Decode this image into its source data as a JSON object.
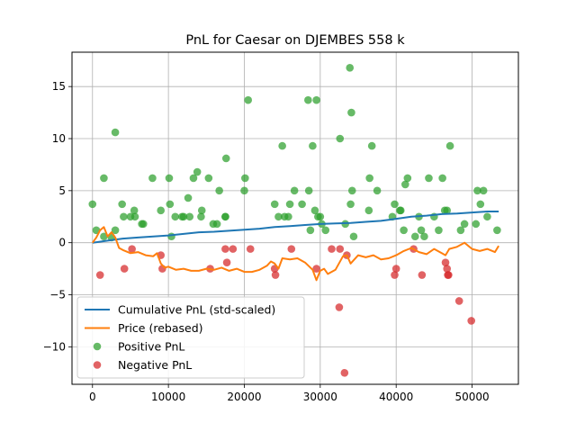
{
  "colors": {
    "cumulative": "#1f77b4",
    "price": "#ff7f0e",
    "positive": "#2ca02c",
    "negative": "#d62728",
    "grid": "#b0b0b0",
    "axis": "#000000"
  },
  "chart_data": {
    "type": "scatter",
    "title": "PnL for Caesar on DJEMBES 558 k",
    "xlabel": "",
    "ylabel": "",
    "xlim": [
      -2700,
      56100
    ],
    "ylim": [
      -13.6,
      18.3
    ],
    "grid": true,
    "legend_position": "lower-left",
    "x_ticks": [
      0,
      10000,
      20000,
      30000,
      40000,
      50000
    ],
    "x_tick_labels": [
      "0",
      "10000",
      "20000",
      "30000",
      "40000",
      "50000"
    ],
    "y_ticks": [
      -10,
      -5,
      0,
      5,
      10,
      15
    ],
    "y_tick_labels": [
      "−10",
      "−5",
      "0",
      "5",
      "10",
      "15"
    ],
    "legend": [
      {
        "label": "Cumulative PnL (std-scaled)",
        "kind": "line",
        "color": "#1f77b4"
      },
      {
        "label": "Price (rebased)",
        "kind": "line",
        "color": "#ff7f0e"
      },
      {
        "label": "Positive PnL",
        "kind": "marker",
        "color": "#2ca02c"
      },
      {
        "label": "Negative PnL",
        "kind": "marker",
        "color": "#d62728"
      }
    ],
    "series": [
      {
        "name": "Cumulative PnL (std-scaled)",
        "kind": "line",
        "color": "#1f77b4",
        "x": [
          0,
          2000,
          4000,
          6000,
          8000,
          10000,
          12000,
          14000,
          16000,
          18000,
          20000,
          22000,
          24000,
          26000,
          28000,
          30000,
          32000,
          34000,
          36000,
          38000,
          40000,
          42000,
          44000,
          46000,
          48000,
          50000,
          52000,
          53500
        ],
        "y": [
          0.0,
          0.2,
          0.4,
          0.5,
          0.6,
          0.7,
          0.85,
          1.0,
          1.05,
          1.15,
          1.25,
          1.35,
          1.5,
          1.6,
          1.7,
          1.8,
          1.85,
          1.9,
          2.0,
          2.1,
          2.3,
          2.5,
          2.6,
          2.75,
          2.8,
          2.9,
          3.0,
          3.0
        ]
      },
      {
        "name": "Price (rebased)",
        "kind": "line",
        "color": "#ff7f0e",
        "x": [
          0,
          500,
          1000,
          1500,
          2000,
          2500,
          3000,
          3500,
          4000,
          5000,
          6000,
          7000,
          8000,
          8500,
          9000,
          9500,
          10000,
          11000,
          12000,
          13000,
          14000,
          15000,
          16000,
          17000,
          18000,
          19000,
          20000,
          21000,
          22000,
          23000,
          23500,
          24000,
          24500,
          25000,
          26000,
          27000,
          28000,
          29000,
          29500,
          30000,
          30500,
          31000,
          32000,
          33000,
          33500,
          34000,
          35000,
          36000,
          37000,
          38000,
          39000,
          40000,
          41000,
          42000,
          43000,
          44000,
          45000,
          46000,
          46500,
          47000,
          48000,
          49000,
          50000,
          51000,
          52000,
          53000,
          53500
        ],
        "y": [
          0.0,
          0.5,
          1.2,
          1.5,
          0.6,
          1.0,
          0.5,
          -0.5,
          -0.7,
          -1.0,
          -0.9,
          -1.2,
          -1.3,
          -1.0,
          -2.0,
          -2.4,
          -2.3,
          -2.6,
          -2.5,
          -2.7,
          -2.7,
          -2.5,
          -2.6,
          -2.4,
          -2.7,
          -2.5,
          -2.8,
          -2.8,
          -2.6,
          -2.2,
          -1.8,
          -2.0,
          -2.5,
          -1.5,
          -1.6,
          -1.5,
          -1.9,
          -2.6,
          -3.6,
          -2.7,
          -2.5,
          -3.0,
          -2.6,
          -1.3,
          -1.2,
          -2.0,
          -1.2,
          -1.4,
          -1.2,
          -1.6,
          -1.5,
          -1.2,
          -0.8,
          -0.5,
          -0.9,
          -1.1,
          -0.6,
          -1.0,
          -1.2,
          -0.6,
          -0.4,
          0.0,
          -0.6,
          -0.8,
          -0.6,
          -0.9,
          -0.3
        ]
      },
      {
        "name": "Positive PnL",
        "kind": "scatter",
        "color": "#2ca02c",
        "x": [
          0,
          500,
          1500,
          1500,
          2500,
          3000,
          3000,
          3900,
          4100,
          5000,
          5500,
          5600,
          6500,
          6700,
          7900,
          9000,
          10100,
          10200,
          10400,
          10900,
          11800,
          12000,
          12600,
          12800,
          13300,
          13800,
          14300,
          14400,
          15300,
          15900,
          16400,
          16700,
          17500,
          17500,
          17600,
          20000,
          20100,
          20500,
          24000,
          24500,
          25000,
          25300,
          25800,
          26000,
          26600,
          27600,
          28400,
          28500,
          28700,
          29000,
          29300,
          29500,
          29700,
          30000,
          30200,
          30700,
          32600,
          33300,
          33900,
          34000,
          34100,
          34200,
          34400,
          36400,
          36500,
          36800,
          37500,
          39500,
          39800,
          40500,
          40600,
          41000,
          41200,
          41500,
          42500,
          43000,
          43300,
          43700,
          44300,
          45000,
          45600,
          46100,
          46400,
          46700,
          47100,
          48500,
          49000,
          50500,
          50700,
          51100,
          51500,
          52000,
          53300
        ],
        "y": [
          3.7,
          1.2,
          6.2,
          0.6,
          0.5,
          10.6,
          1.2,
          3.7,
          2.5,
          2.5,
          3.1,
          2.5,
          1.8,
          1.8,
          6.2,
          3.1,
          6.2,
          3.7,
          0.6,
          2.5,
          2.5,
          2.5,
          4.3,
          2.5,
          6.2,
          6.8,
          2.5,
          3.1,
          6.2,
          1.8,
          1.8,
          5.0,
          2.5,
          2.5,
          8.1,
          5.0,
          6.2,
          13.7,
          3.7,
          2.5,
          9.3,
          2.5,
          2.5,
          3.7,
          5.0,
          3.7,
          13.7,
          5.0,
          1.2,
          9.3,
          3.1,
          13.7,
          2.5,
          2.5,
          1.8,
          1.2,
          10.0,
          1.8,
          16.8,
          3.7,
          12.5,
          5.0,
          0.6,
          3.1,
          6.2,
          9.3,
          5.0,
          2.5,
          3.7,
          3.1,
          3.1,
          1.2,
          5.6,
          6.2,
          0.6,
          2.5,
          1.2,
          0.6,
          6.2,
          2.5,
          1.2,
          6.2,
          3.1,
          3.1,
          9.3,
          1.2,
          1.8,
          1.8,
          5.0,
          3.7,
          5.0,
          2.5,
          1.2
        ]
      },
      {
        "name": "Negative PnL",
        "kind": "scatter",
        "color": "#d62728",
        "x": [
          1000,
          4200,
          5200,
          9000,
          9200,
          15500,
          17500,
          17700,
          18500,
          20800,
          24000,
          24100,
          26200,
          29500,
          31500,
          32500,
          32600,
          33200,
          33500,
          39800,
          40000,
          42300,
          43400,
          46500,
          46700,
          46800,
          46900,
          48300,
          49900
        ],
        "y": [
          -3.1,
          -2.5,
          -0.6,
          -1.2,
          -2.5,
          -2.5,
          -0.6,
          -1.9,
          -0.6,
          -0.6,
          -2.5,
          -3.1,
          -0.6,
          -2.5,
          -0.6,
          -6.2,
          -0.6,
          -12.5,
          -1.2,
          -3.1,
          -2.5,
          -0.6,
          -3.1,
          -1.9,
          -2.5,
          -3.1,
          -3.1,
          -5.6,
          -7.5
        ]
      }
    ]
  }
}
